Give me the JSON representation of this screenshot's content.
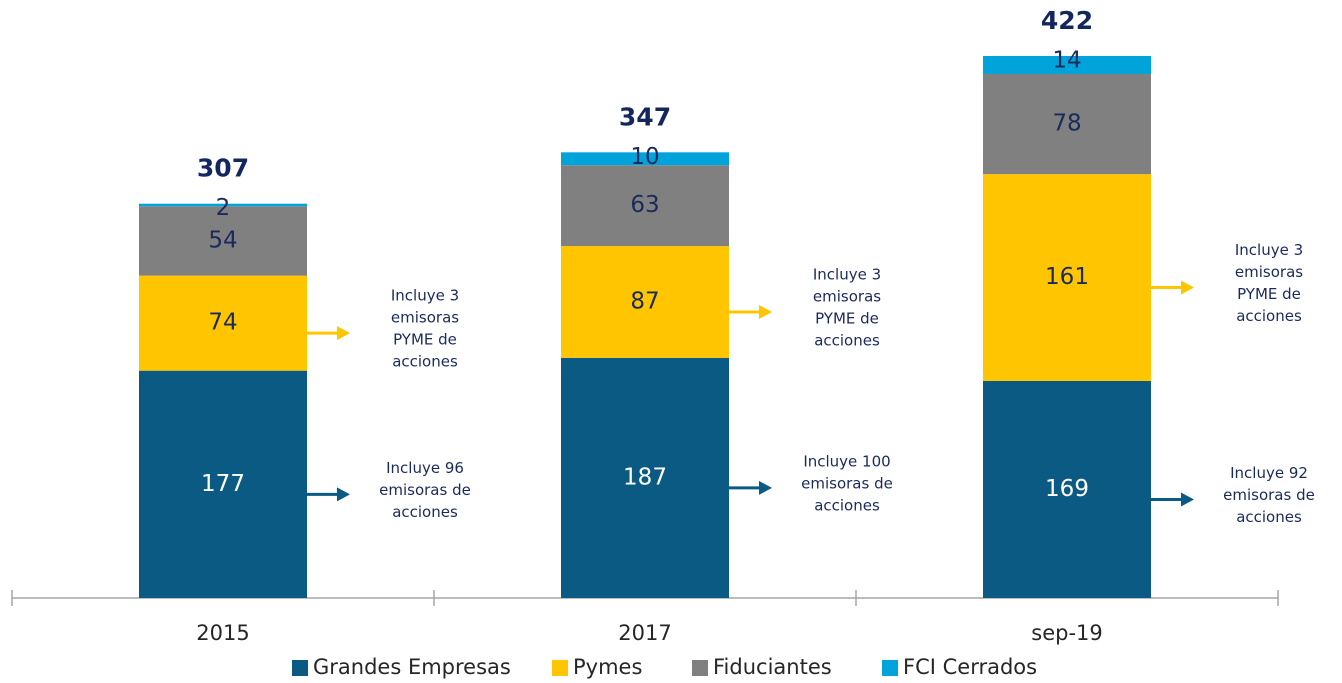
{
  "chart_data": {
    "type": "stacked_bar",
    "categories": [
      "2015",
      "2017",
      "sep-19"
    ],
    "series": [
      {
        "name": "Grandes Empresas",
        "color": "#0b5a84",
        "values": [
          177,
          187,
          169
        ]
      },
      {
        "name": "Pymes",
        "color": "#ffc600",
        "values": [
          74,
          87,
          161
        ]
      },
      {
        "name": "Fiduciantes",
        "color": "#808080",
        "values": [
          54,
          63,
          78
        ]
      },
      {
        "name": "FCI Cerrados",
        "color": "#00a3da",
        "values": [
          2,
          10,
          14
        ]
      }
    ],
    "totals": [
      307,
      347,
      422
    ],
    "annotations": [
      [
        [
          "Incluye 96",
          "emisoras de",
          "acciones"
        ],
        [
          "Incluye 3",
          "emisoras",
          "PYME de",
          "acciones"
        ]
      ],
      [
        [
          "Incluye 100",
          "emisoras de",
          "acciones"
        ],
        [
          "Incluye 3",
          "emisoras",
          "PYME de",
          "acciones"
        ]
      ],
      [
        [
          "Incluye 92",
          "emisoras de",
          "acciones"
        ],
        [
          "Incluye 3",
          "emisoras",
          "PYME de",
          "acciones"
        ]
      ]
    ],
    "legend": "bottom"
  }
}
